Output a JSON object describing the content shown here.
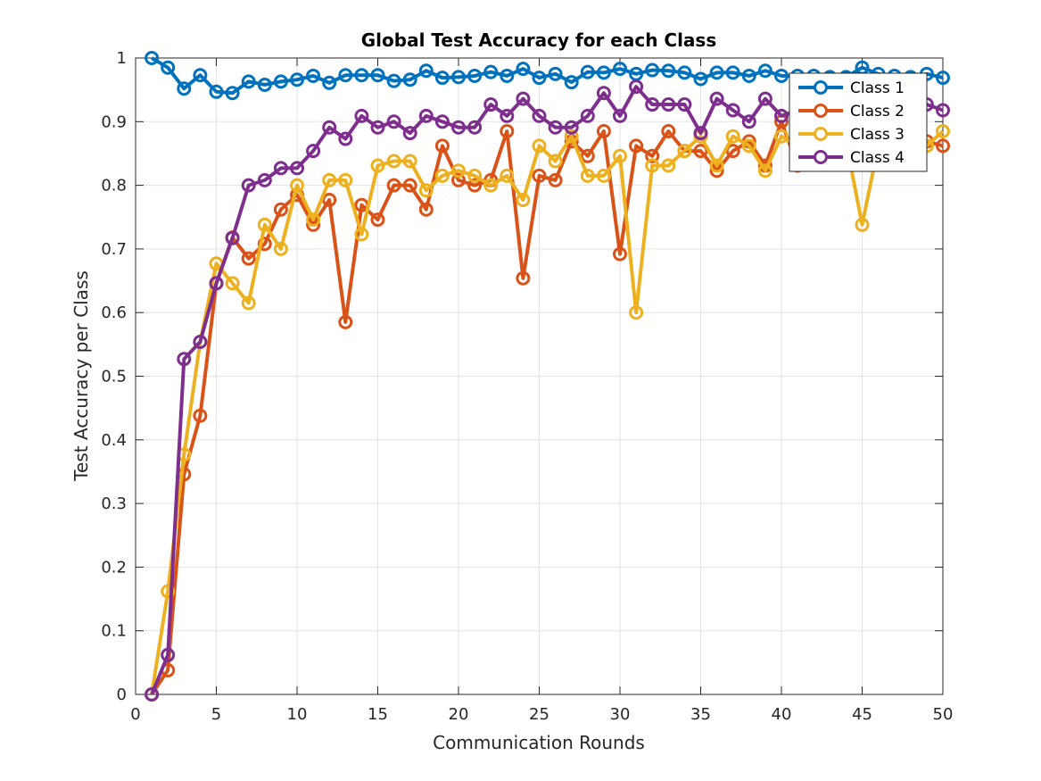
{
  "chart_data": {
    "type": "line",
    "title": "Global Test Accuracy for each Class",
    "xlabel": "Communication Rounds",
    "ylabel": "Test Accuracy per Class",
    "xlim": [
      0,
      50
    ],
    "ylim": [
      0,
      1
    ],
    "xticks": [
      0,
      5,
      10,
      15,
      20,
      25,
      30,
      35,
      40,
      45,
      50
    ],
    "yticks": [
      0,
      0.1,
      0.2,
      0.3,
      0.4,
      0.5,
      0.6,
      0.7,
      0.8,
      0.9,
      1
    ],
    "ytick_labels": [
      "0",
      "0.1",
      "0.2",
      "0.3",
      "0.4",
      "0.5",
      "0.6",
      "0.7",
      "0.8",
      "0.9",
      "1"
    ],
    "grid": true,
    "legend_position": "top-right",
    "x": [
      1,
      2,
      3,
      4,
      5,
      6,
      7,
      8,
      9,
      10,
      11,
      12,
      13,
      14,
      15,
      16,
      17,
      18,
      19,
      20,
      21,
      22,
      23,
      24,
      25,
      26,
      27,
      28,
      29,
      30,
      31,
      32,
      33,
      34,
      35,
      36,
      37,
      38,
      39,
      40,
      41,
      42,
      43,
      44,
      45,
      46,
      47,
      48,
      49,
      50
    ],
    "series": [
      {
        "name": "Class 1",
        "color": "#0072BD",
        "values": [
          1.0,
          0.985,
          0.952,
          0.973,
          0.947,
          0.945,
          0.963,
          0.958,
          0.963,
          0.966,
          0.972,
          0.961,
          0.973,
          0.973,
          0.973,
          0.964,
          0.966,
          0.98,
          0.969,
          0.97,
          0.972,
          0.978,
          0.972,
          0.983,
          0.969,
          0.975,
          0.962,
          0.978,
          0.977,
          0.983,
          0.975,
          0.981,
          0.98,
          0.977,
          0.967,
          0.977,
          0.977,
          0.972,
          0.98,
          0.972,
          0.972,
          0.972,
          0.97,
          0.97,
          0.985,
          0.975,
          0.972,
          0.97,
          0.975,
          0.969
        ]
      },
      {
        "name": "Class 2",
        "color": "#D95319",
        "values": [
          0.0,
          0.038,
          0.346,
          0.438,
          0.646,
          0.718,
          0.685,
          0.708,
          0.762,
          0.785,
          0.738,
          0.777,
          0.585,
          0.769,
          0.746,
          0.8,
          0.8,
          0.762,
          0.862,
          0.808,
          0.8,
          0.808,
          0.885,
          0.654,
          0.815,
          0.808,
          0.869,
          0.846,
          0.885,
          0.692,
          0.862,
          0.846,
          0.885,
          0.854,
          0.854,
          0.823,
          0.854,
          0.869,
          0.831,
          0.9,
          0.831,
          0.846,
          0.854,
          0.862,
          0.869,
          0.862,
          0.877,
          0.869,
          0.869,
          0.862
        ]
      },
      {
        "name": "Class 3",
        "color": "#EDB120",
        "values": [
          0.0,
          0.162,
          0.377,
          0.554,
          0.677,
          0.646,
          0.615,
          0.738,
          0.7,
          0.8,
          0.746,
          0.808,
          0.808,
          0.723,
          0.831,
          0.838,
          0.838,
          0.792,
          0.815,
          0.823,
          0.815,
          0.8,
          0.815,
          0.777,
          0.862,
          0.838,
          0.877,
          0.815,
          0.815,
          0.846,
          0.6,
          0.831,
          0.831,
          0.854,
          0.877,
          0.831,
          0.877,
          0.862,
          0.823,
          0.877,
          0.862,
          0.877,
          0.869,
          0.869,
          0.738,
          0.862,
          0.869,
          0.869,
          0.862,
          0.885
        ]
      },
      {
        "name": "Class 4",
        "color": "#7E2F8E",
        "values": [
          0.0,
          0.062,
          0.527,
          0.554,
          0.646,
          0.717,
          0.8,
          0.808,
          0.827,
          0.827,
          0.854,
          0.891,
          0.873,
          0.909,
          0.891,
          0.9,
          0.882,
          0.909,
          0.9,
          0.891,
          0.891,
          0.927,
          0.909,
          0.936,
          0.909,
          0.891,
          0.891,
          0.909,
          0.945,
          0.909,
          0.955,
          0.927,
          0.927,
          0.927,
          0.882,
          0.936,
          0.918,
          0.9,
          0.936,
          0.909,
          0.918,
          0.918,
          0.909,
          0.918,
          0.918,
          0.927,
          0.918,
          0.927,
          0.927,
          0.918
        ]
      }
    ]
  }
}
